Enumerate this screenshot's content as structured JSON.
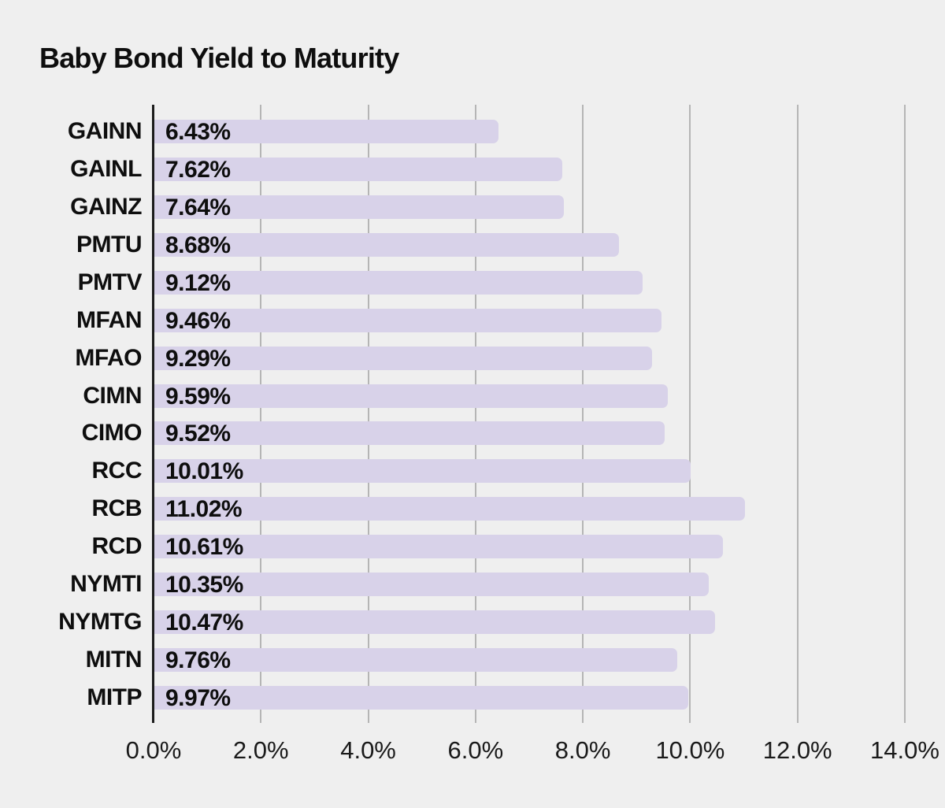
{
  "chart_data": {
    "type": "bar",
    "orientation": "horizontal",
    "title": "Baby Bond Yield to Maturity",
    "categories": [
      "GAINN",
      "GAINL",
      "GAINZ",
      "PMTU",
      "PMTV",
      "MFAN",
      "MFAO",
      "CIMN",
      "CIMO",
      "RCC",
      "RCB",
      "RCD",
      "NYMTI",
      "NYMTG",
      "MITN",
      "MITP"
    ],
    "values": [
      6.43,
      7.62,
      7.64,
      8.68,
      9.12,
      9.46,
      9.29,
      9.59,
      9.52,
      10.01,
      11.02,
      10.61,
      10.35,
      10.47,
      9.76,
      9.97
    ],
    "value_labels": [
      "6.43%",
      "7.62%",
      "7.64%",
      "8.68%",
      "9.12%",
      "9.46%",
      "9.29%",
      "9.59%",
      "9.52%",
      "10.01%",
      "11.02%",
      "10.61%",
      "10.35%",
      "10.47%",
      "9.76%",
      "9.97%"
    ],
    "xlabel": "",
    "ylabel": "",
    "xlim": [
      0,
      14
    ],
    "x_tick_values": [
      0,
      2,
      4,
      6,
      8,
      10,
      12,
      14
    ],
    "x_tick_labels": [
      "0.0%",
      "2.0%",
      "4.0%",
      "6.0%",
      "8.0%",
      "10.0%",
      "12.0%",
      "14.0%"
    ],
    "grid": "vertical-gridlines-behind-bars",
    "legend": "none",
    "colors": {
      "background": "#efefef",
      "bar": "#d8d2e9",
      "gridline": "#b5b5b5",
      "axis_line": "#1c1c1c",
      "text": "#0e0e0e"
    }
  }
}
